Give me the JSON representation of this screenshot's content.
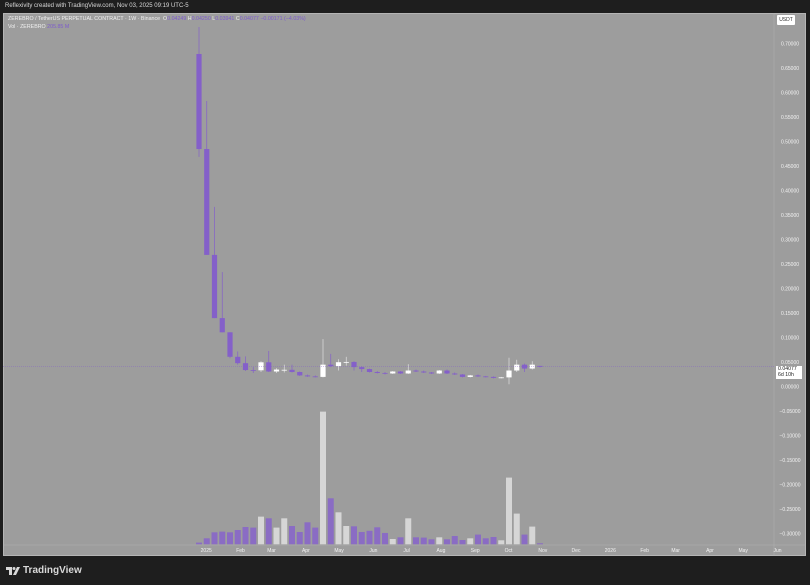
{
  "header": {
    "title": "Reflexivity created with TradingView.com, Nov 03, 2025 09:19 UTC-5"
  },
  "legend": {
    "symbol": "ZEREBRO / TetherUS PERPETUAL CONTRACT · 1W · Binance",
    "o_label": "O",
    "o": "0.04249",
    "h_label": "H",
    "h": "0.04250",
    "l_label": "L",
    "l": "0.03941",
    "c_label": "C",
    "c": "0.04077",
    "change": "−0.00171 (−4.03%)",
    "vol_label": "Vol · ZEREBRO",
    "vol": "205.85 M"
  },
  "price_axis": {
    "unit": "USDT",
    "ticks": [
      "0.70000",
      "0.65000",
      "0.60000",
      "0.55000",
      "0.50000",
      "0.45000",
      "0.40000",
      "0.35000",
      "0.30000",
      "0.25000",
      "0.20000",
      "0.15000",
      "0.10000",
      "0.05000",
      "0.00000",
      "−0.05000",
      "−0.10000",
      "−0.15000",
      "−0.20000",
      "−0.25000",
      "−0.30000"
    ],
    "tick_values": [
      0.7,
      0.65,
      0.6,
      0.55,
      0.5,
      0.45,
      0.4,
      0.35,
      0.3,
      0.25,
      0.2,
      0.15,
      0.1,
      0.05,
      0,
      -0.05,
      -0.1,
      -0.15,
      -0.2,
      -0.25,
      -0.3
    ],
    "last_price": "0.04077",
    "countdown": "6d 10h"
  },
  "time_axis": {
    "ticks": [
      {
        "label": "2025",
        "date": "2025-01-01"
      },
      {
        "label": "Feb",
        "date": "2025-02-01"
      },
      {
        "label": "Mar",
        "date": "2025-03-01"
      },
      {
        "label": "Apr",
        "date": "2025-04-01"
      },
      {
        "label": "May",
        "date": "2025-05-01"
      },
      {
        "label": "Jun",
        "date": "2025-06-01"
      },
      {
        "label": "Jul",
        "date": "2025-07-01"
      },
      {
        "label": "Aug",
        "date": "2025-08-01"
      },
      {
        "label": "Sep",
        "date": "2025-09-01"
      },
      {
        "label": "Oct",
        "date": "2025-10-01"
      },
      {
        "label": "Nov",
        "date": "2025-11-01"
      },
      {
        "label": "Dec",
        "date": "2025-12-01"
      },
      {
        "label": "2026",
        "date": "2026-01-01"
      },
      {
        "label": "Feb",
        "date": "2026-02-01"
      },
      {
        "label": "Mar",
        "date": "2026-03-01"
      },
      {
        "label": "Apr",
        "date": "2026-04-01"
      },
      {
        "label": "May",
        "date": "2026-05-01"
      },
      {
        "label": "Jun",
        "date": "2026-06-01"
      }
    ]
  },
  "colors": {
    "down": "#8460c9",
    "up": "#ffffff",
    "vol_down": "#8a6cc4",
    "vol_up": "#d6d6d6",
    "background": "#9d9d9d"
  },
  "chart_data": {
    "type": "candlestick",
    "interval": "1W",
    "volume_unit": "M",
    "candles": [
      {
        "t": "2024-12-30",
        "o": 0.679,
        "h": 0.734,
        "l": 0.469,
        "c": 0.485,
        "v": 350
      },
      {
        "t": "2025-01-06",
        "o": 0.485,
        "h": 0.583,
        "l": 0.269,
        "c": 0.269,
        "v": 1235
      },
      {
        "t": "2025-01-13",
        "o": 0.269,
        "h": 0.367,
        "l": 0.14,
        "c": 0.14,
        "v": 2470
      },
      {
        "t": "2025-01-20",
        "o": 0.14,
        "h": 0.234,
        "l": 0.111,
        "c": 0.111,
        "v": 2615
      },
      {
        "t": "2025-01-27",
        "o": 0.111,
        "h": 0.111,
        "l": 0.058,
        "c": 0.061,
        "v": 2470
      },
      {
        "t": "2025-02-03",
        "o": 0.061,
        "h": 0.072,
        "l": 0.045,
        "c": 0.048,
        "v": 2945
      },
      {
        "t": "2025-02-10",
        "o": 0.048,
        "h": 0.062,
        "l": 0.032,
        "c": 0.034,
        "v": 3560
      },
      {
        "t": "2025-02-17",
        "o": 0.034,
        "h": 0.04,
        "l": 0.028,
        "c": 0.0335,
        "v": 3440
      },
      {
        "t": "2025-02-24",
        "o": 0.0335,
        "h": 0.052,
        "l": 0.03,
        "c": 0.0498,
        "v": 5700
      },
      {
        "t": "2025-03-03",
        "o": 0.0498,
        "h": 0.073,
        "l": 0.03,
        "c": 0.031,
        "v": 5355
      },
      {
        "t": "2025-03-10",
        "o": 0.031,
        "h": 0.038,
        "l": 0.028,
        "c": 0.035,
        "v": 3440
      },
      {
        "t": "2025-03-17",
        "o": 0.034,
        "h": 0.045,
        "l": 0.029,
        "c": 0.0345,
        "v": 5355
      },
      {
        "t": "2025-03-24",
        "o": 0.0345,
        "h": 0.045,
        "l": 0.029,
        "c": 0.03,
        "v": 3770
      },
      {
        "t": "2025-03-31",
        "o": 0.03,
        "h": 0.031,
        "l": 0.022,
        "c": 0.023,
        "v": 2535
      },
      {
        "t": "2025-04-07",
        "o": 0.023,
        "h": 0.025,
        "l": 0.02,
        "c": 0.021,
        "v": 4530
      },
      {
        "t": "2025-04-14",
        "o": 0.021,
        "h": 0.023,
        "l": 0.019,
        "c": 0.02,
        "v": 3440
      },
      {
        "t": "2025-04-21",
        "o": 0.02,
        "h": 0.097,
        "l": 0.019,
        "c": 0.045,
        "v": 27330
      },
      {
        "t": "2025-04-28",
        "o": 0.045,
        "h": 0.067,
        "l": 0.04,
        "c": 0.042,
        "v": 9475
      },
      {
        "t": "2025-05-05",
        "o": 0.042,
        "h": 0.056,
        "l": 0.033,
        "c": 0.05,
        "v": 6590
      },
      {
        "t": "2025-05-12",
        "o": 0.05,
        "h": 0.061,
        "l": 0.043,
        "c": 0.0505,
        "v": 3770
      },
      {
        "t": "2025-05-19",
        "o": 0.0505,
        "h": 0.052,
        "l": 0.033,
        "c": 0.04,
        "v": 3705
      },
      {
        "t": "2025-05-26",
        "o": 0.04,
        "h": 0.042,
        "l": 0.03,
        "c": 0.036,
        "v": 2535
      },
      {
        "t": "2025-06-02",
        "o": 0.036,
        "h": 0.037,
        "l": 0.029,
        "c": 0.03,
        "v": 2780
      },
      {
        "t": "2025-06-09",
        "o": 0.03,
        "h": 0.032,
        "l": 0.027,
        "c": 0.028,
        "v": 3500
      },
      {
        "t": "2025-06-16",
        "o": 0.028,
        "h": 0.03,
        "l": 0.025,
        "c": 0.027,
        "v": 2330
      },
      {
        "t": "2025-06-23",
        "o": 0.027,
        "h": 0.032,
        "l": 0.026,
        "c": 0.031,
        "v": 1090
      },
      {
        "t": "2025-06-30",
        "o": 0.031,
        "h": 0.032,
        "l": 0.026,
        "c": 0.027,
        "v": 1440
      },
      {
        "t": "2025-07-07",
        "o": 0.027,
        "h": 0.046,
        "l": 0.026,
        "c": 0.033,
        "v": 5355
      },
      {
        "t": "2025-07-14",
        "o": 0.033,
        "h": 0.035,
        "l": 0.03,
        "c": 0.031,
        "v": 1440
      },
      {
        "t": "2025-07-21",
        "o": 0.031,
        "h": 0.033,
        "l": 0.028,
        "c": 0.029,
        "v": 1380
      },
      {
        "t": "2025-07-28",
        "o": 0.029,
        "h": 0.03,
        "l": 0.026,
        "c": 0.027,
        "v": 1030
      },
      {
        "t": "2025-08-04",
        "o": 0.027,
        "h": 0.034,
        "l": 0.026,
        "c": 0.033,
        "v": 1440
      },
      {
        "t": "2025-08-11",
        "o": 0.033,
        "h": 0.035,
        "l": 0.026,
        "c": 0.027,
        "v": 1030
      },
      {
        "t": "2025-08-18",
        "o": 0.027,
        "h": 0.029,
        "l": 0.024,
        "c": 0.025,
        "v": 1710
      },
      {
        "t": "2025-08-25",
        "o": 0.025,
        "h": 0.026,
        "l": 0.019,
        "c": 0.02,
        "v": 885
      },
      {
        "t": "2025-09-01",
        "o": 0.02,
        "h": 0.024,
        "l": 0.019,
        "c": 0.023,
        "v": 1235
      },
      {
        "t": "2025-09-08",
        "o": 0.023,
        "h": 0.025,
        "l": 0.02,
        "c": 0.021,
        "v": 2000
      },
      {
        "t": "2025-09-15",
        "o": 0.021,
        "h": 0.022,
        "l": 0.019,
        "c": 0.02,
        "v": 1235
      },
      {
        "t": "2025-09-22",
        "o": 0.02,
        "h": 0.021,
        "l": 0.017,
        "c": 0.018,
        "v": 1505
      },
      {
        "t": "2025-09-29",
        "o": 0.018,
        "h": 0.02,
        "l": 0.017,
        "c": 0.019,
        "v": 825
      },
      {
        "t": "2025-10-06",
        "o": 0.019,
        "h": 0.059,
        "l": 0.005,
        "c": 0.033,
        "v": 13740
      },
      {
        "t": "2025-10-13",
        "o": 0.033,
        "h": 0.055,
        "l": 0.03,
        "c": 0.045,
        "v": 6325
      },
      {
        "t": "2025-10-20",
        "o": 0.045,
        "h": 0.047,
        "l": 0.03,
        "c": 0.037,
        "v": 2000
      },
      {
        "t": "2025-10-27",
        "o": 0.037,
        "h": 0.052,
        "l": 0.035,
        "c": 0.045,
        "v": 3645
      },
      {
        "t": "2025-11-03",
        "o": 0.04249,
        "h": 0.0425,
        "l": 0.03941,
        "c": 0.04077,
        "v": 205.85
      }
    ]
  }
}
